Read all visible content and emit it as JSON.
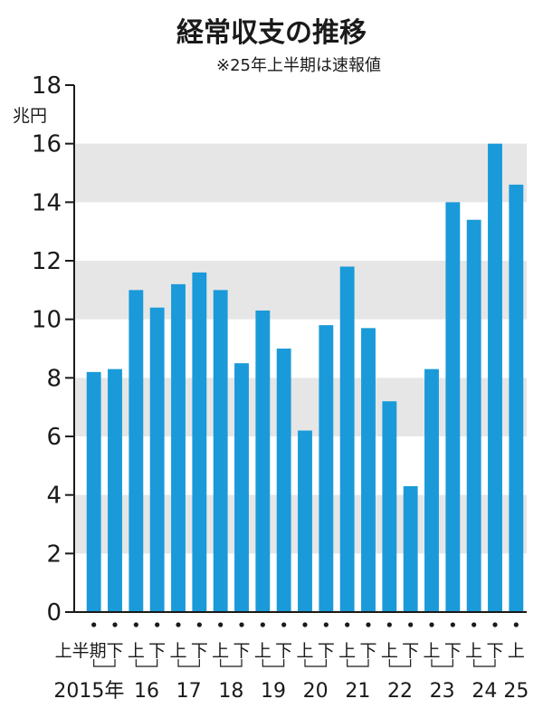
{
  "chart_data": {
    "type": "bar",
    "title": "経常収支の推移",
    "subtitle": "※25年上半期は速報値",
    "ylabel": "兆円",
    "ylim": [
      0,
      18
    ],
    "yticks": [
      0,
      2,
      4,
      6,
      8,
      10,
      12,
      14,
      16,
      18
    ],
    "categories": [
      {
        "half": "上半期",
        "year": "2015年"
      },
      {
        "half": "下",
        "year": ""
      },
      {
        "half": "上",
        "year": "16"
      },
      {
        "half": "下",
        "year": ""
      },
      {
        "half": "上",
        "year": "17"
      },
      {
        "half": "下",
        "year": ""
      },
      {
        "half": "上",
        "year": "18"
      },
      {
        "half": "下",
        "year": ""
      },
      {
        "half": "上",
        "year": "19"
      },
      {
        "half": "下",
        "year": ""
      },
      {
        "half": "上",
        "year": "20"
      },
      {
        "half": "下",
        "year": ""
      },
      {
        "half": "上",
        "year": "21"
      },
      {
        "half": "下",
        "year": ""
      },
      {
        "half": "上",
        "year": "22"
      },
      {
        "half": "下",
        "year": ""
      },
      {
        "half": "上",
        "year": "23"
      },
      {
        "half": "下",
        "year": ""
      },
      {
        "half": "上",
        "year": "24"
      },
      {
        "half": "下",
        "year": ""
      },
      {
        "half": "上",
        "year": "25"
      }
    ],
    "values": [
      8.2,
      8.3,
      11.0,
      10.4,
      11.2,
      11.6,
      11.0,
      8.5,
      10.3,
      9.0,
      6.2,
      9.8,
      11.8,
      9.7,
      7.2,
      4.3,
      8.3,
      14.0,
      13.4,
      16.0,
      14.6
    ],
    "grid": "alternating horizontal bands",
    "colors": {
      "bar": "#1a9ad9",
      "band": "#e6e6e6",
      "axis": "#1a1a1a"
    }
  }
}
